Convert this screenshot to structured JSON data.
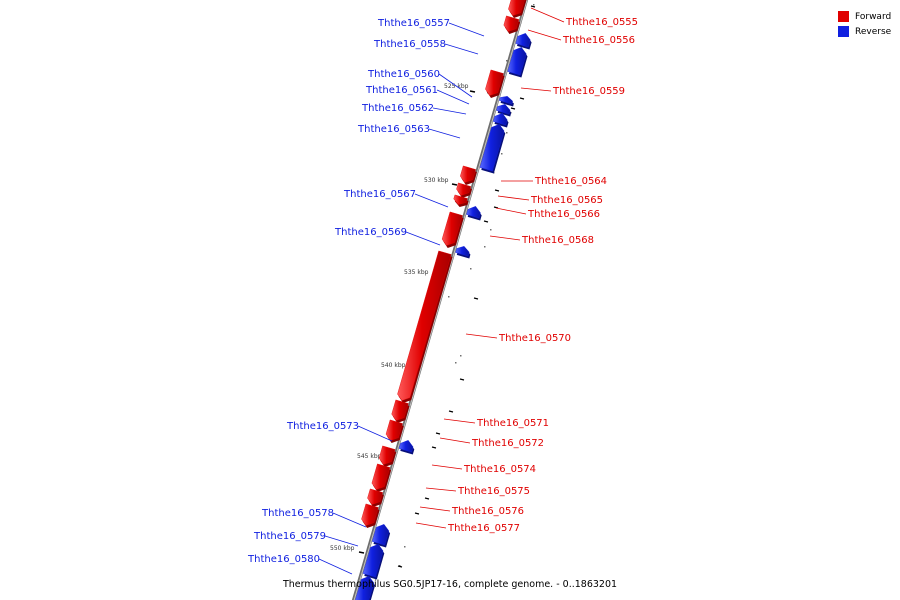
{
  "legend": {
    "forward_label": "Forward",
    "reverse_label": "Reverse",
    "forward_color": "#e00000",
    "reverse_color": "#1020e0"
  },
  "caption": "Thermus thermophilus SG0.5JP17-16, complete genome. - 0..1863201",
  "colors": {
    "forward": "#e00000",
    "reverse": "#1020e0",
    "backbone": "#888888"
  },
  "scale_ticks": [
    {
      "label": "525 kbp",
      "kbp": 525
    },
    {
      "label": "530 kbp",
      "kbp": 530
    },
    {
      "label": "535 kbp",
      "kbp": 535
    },
    {
      "label": "540 kbp",
      "kbp": 540
    },
    {
      "label": "545 kbp",
      "kbp": 545
    },
    {
      "label": "550 kbp",
      "kbp": 550
    }
  ],
  "genes": [
    {
      "name": "Ththe16_0555",
      "strand": "forward"
    },
    {
      "name": "Ththe16_0556",
      "strand": "forward"
    },
    {
      "name": "Ththe16_0557",
      "strand": "reverse"
    },
    {
      "name": "Ththe16_0558",
      "strand": "reverse"
    },
    {
      "name": "Ththe16_0559",
      "strand": "forward"
    },
    {
      "name": "Ththe16_0560",
      "strand": "reverse"
    },
    {
      "name": "Ththe16_0561",
      "strand": "reverse"
    },
    {
      "name": "Ththe16_0562",
      "strand": "reverse"
    },
    {
      "name": "Ththe16_0563",
      "strand": "reverse"
    },
    {
      "name": "Ththe16_0564",
      "strand": "forward"
    },
    {
      "name": "Ththe16_0565",
      "strand": "forward"
    },
    {
      "name": "Ththe16_0566",
      "strand": "forward"
    },
    {
      "name": "Ththe16_0567",
      "strand": "reverse"
    },
    {
      "name": "Ththe16_0568",
      "strand": "forward"
    },
    {
      "name": "Ththe16_0569",
      "strand": "reverse"
    },
    {
      "name": "Ththe16_0570",
      "strand": "forward"
    },
    {
      "name": "Ththe16_0571",
      "strand": "forward"
    },
    {
      "name": "Ththe16_0572",
      "strand": "forward"
    },
    {
      "name": "Ththe16_0573",
      "strand": "reverse"
    },
    {
      "name": "Ththe16_0574",
      "strand": "forward"
    },
    {
      "name": "Ththe16_0575",
      "strand": "forward"
    },
    {
      "name": "Ththe16_0576",
      "strand": "forward"
    },
    {
      "name": "Ththe16_0577",
      "strand": "forward"
    },
    {
      "name": "Ththe16_0578",
      "strand": "reverse"
    },
    {
      "name": "Ththe16_0579",
      "strand": "reverse"
    },
    {
      "name": "Ththe16_0580",
      "strand": "reverse"
    }
  ]
}
